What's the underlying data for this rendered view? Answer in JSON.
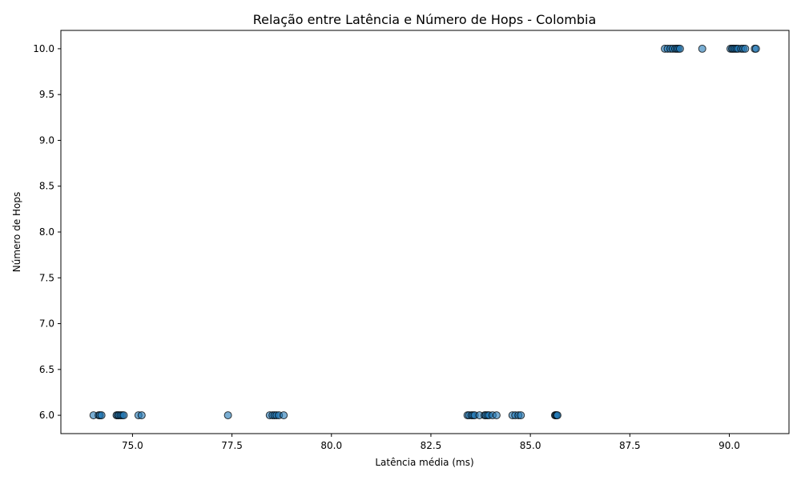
{
  "chart_data": {
    "type": "scatter",
    "title": "Relação entre Latência e Número de Hops - Colombia",
    "xlabel": "Latência média (ms)",
    "ylabel": "Número de Hops",
    "xlim": [
      73.2,
      91.5
    ],
    "ylim": [
      5.8,
      10.2
    ],
    "xticks": [
      "75.0",
      "77.5",
      "80.0",
      "82.5",
      "85.0",
      "87.5",
      "90.0"
    ],
    "xtick_values": [
      75.0,
      77.5,
      80.0,
      82.5,
      85.0,
      87.5,
      90.0
    ],
    "yticks": [
      "6.0",
      "6.5",
      "7.0",
      "7.5",
      "8.0",
      "8.5",
      "9.0",
      "9.5",
      "10.0"
    ],
    "ytick_values": [
      6.0,
      6.5,
      7.0,
      7.5,
      8.0,
      8.5,
      9.0,
      9.5,
      10.0
    ],
    "grid": false,
    "marker_color": "#1f77b4",
    "marker_edge_color": "#000000",
    "marker_alpha": 0.6,
    "points": [
      {
        "x": 74.02,
        "y": 6
      },
      {
        "x": 74.15,
        "y": 6
      },
      {
        "x": 74.18,
        "y": 6
      },
      {
        "x": 74.22,
        "y": 6
      },
      {
        "x": 74.6,
        "y": 6
      },
      {
        "x": 74.63,
        "y": 6
      },
      {
        "x": 74.66,
        "y": 6
      },
      {
        "x": 74.7,
        "y": 6
      },
      {
        "x": 74.74,
        "y": 6
      },
      {
        "x": 74.78,
        "y": 6
      },
      {
        "x": 75.15,
        "y": 6
      },
      {
        "x": 75.23,
        "y": 6
      },
      {
        "x": 77.4,
        "y": 6
      },
      {
        "x": 78.45,
        "y": 6
      },
      {
        "x": 78.52,
        "y": 6
      },
      {
        "x": 78.57,
        "y": 6
      },
      {
        "x": 78.62,
        "y": 6
      },
      {
        "x": 78.68,
        "y": 6
      },
      {
        "x": 78.8,
        "y": 6
      },
      {
        "x": 83.42,
        "y": 6
      },
      {
        "x": 83.46,
        "y": 6
      },
      {
        "x": 83.52,
        "y": 6
      },
      {
        "x": 83.56,
        "y": 6
      },
      {
        "x": 83.6,
        "y": 6
      },
      {
        "x": 83.72,
        "y": 6
      },
      {
        "x": 83.85,
        "y": 6
      },
      {
        "x": 83.88,
        "y": 6
      },
      {
        "x": 83.92,
        "y": 6
      },
      {
        "x": 83.96,
        "y": 6
      },
      {
        "x": 84.05,
        "y": 6
      },
      {
        "x": 84.15,
        "y": 6
      },
      {
        "x": 84.55,
        "y": 6
      },
      {
        "x": 84.62,
        "y": 6
      },
      {
        "x": 84.7,
        "y": 6
      },
      {
        "x": 84.76,
        "y": 6
      },
      {
        "x": 85.62,
        "y": 6
      },
      {
        "x": 85.64,
        "y": 6
      },
      {
        "x": 85.66,
        "y": 6
      },
      {
        "x": 85.68,
        "y": 6
      },
      {
        "x": 88.38,
        "y": 10
      },
      {
        "x": 88.45,
        "y": 10
      },
      {
        "x": 88.52,
        "y": 10
      },
      {
        "x": 88.58,
        "y": 10
      },
      {
        "x": 88.64,
        "y": 10
      },
      {
        "x": 88.68,
        "y": 10
      },
      {
        "x": 88.72,
        "y": 10
      },
      {
        "x": 88.76,
        "y": 10
      },
      {
        "x": 89.32,
        "y": 10
      },
      {
        "x": 90.03,
        "y": 10
      },
      {
        "x": 90.07,
        "y": 10
      },
      {
        "x": 90.1,
        "y": 10
      },
      {
        "x": 90.14,
        "y": 10
      },
      {
        "x": 90.18,
        "y": 10
      },
      {
        "x": 90.22,
        "y": 10
      },
      {
        "x": 90.3,
        "y": 10
      },
      {
        "x": 90.35,
        "y": 10
      },
      {
        "x": 90.4,
        "y": 10
      },
      {
        "x": 90.64,
        "y": 10
      },
      {
        "x": 90.67,
        "y": 10
      }
    ]
  }
}
